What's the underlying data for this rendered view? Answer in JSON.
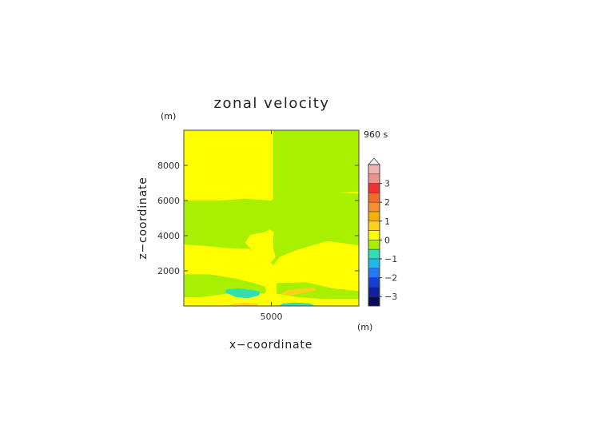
{
  "chart_data": {
    "type": "contour",
    "title": "zonal velocity",
    "time_label": "960 s",
    "xlabel": "x−coordinate",
    "ylabel": "z−coordinate",
    "x_unit": "(m)",
    "y_unit": "(m)",
    "xlim": [
      0,
      10000
    ],
    "ylim": [
      0,
      10000
    ],
    "xticks": [
      5000
    ],
    "yticks": [
      2000,
      4000,
      6000,
      8000
    ],
    "colorbar": {
      "ticks": [
        3,
        2,
        1,
        0,
        -1,
        -2,
        -3
      ],
      "tick_labels": [
        "3",
        "2",
        "1",
        "0",
        "−1",
        "−2",
        "−3"
      ],
      "levels": [
        {
          "lo": 3.5,
          "hi": 4.0,
          "color": "#f4b2b2"
        },
        {
          "lo": 3.0,
          "hi": 3.5,
          "color": "#f09090"
        },
        {
          "lo": 2.5,
          "hi": 3.0,
          "color": "#ee3030"
        },
        {
          "lo": 2.0,
          "hi": 2.5,
          "color": "#f46a2a"
        },
        {
          "lo": 1.5,
          "hi": 2.0,
          "color": "#f88f2a"
        },
        {
          "lo": 1.0,
          "hi": 1.5,
          "color": "#f7b000"
        },
        {
          "lo": 0.5,
          "hi": 1.0,
          "color": "#fbd21a"
        },
        {
          "lo": 0.0,
          "hi": 0.5,
          "color": "#ffff00"
        },
        {
          "lo": -0.5,
          "hi": 0.0,
          "color": "#a8f000"
        },
        {
          "lo": -1.0,
          "hi": -0.5,
          "color": "#30e0b0"
        },
        {
          "lo": -1.5,
          "hi": -1.0,
          "color": "#20b8e8"
        },
        {
          "lo": -2.0,
          "hi": -1.5,
          "color": "#2478f0"
        },
        {
          "lo": -2.5,
          "hi": -2.0,
          "color": "#1440d0"
        },
        {
          "lo": -3.0,
          "hi": -2.5,
          "color": "#10209c"
        },
        {
          "lo": -3.5,
          "hi": -3.0,
          "color": "#0a0a5a"
        }
      ],
      "extend": "max"
    },
    "regions": [
      {
        "name": "background",
        "value": 0.25,
        "polygon": [
          [
            0,
            0
          ],
          [
            10000,
            0
          ],
          [
            10000,
            10000
          ],
          [
            0,
            10000
          ]
        ]
      },
      {
        "name": "upper-right-green",
        "value": -0.25,
        "polygon": [
          [
            5100,
            10000
          ],
          [
            10000,
            10000
          ],
          [
            10000,
            6500
          ],
          [
            7500,
            6400
          ],
          [
            5600,
            6300
          ],
          [
            5100,
            6000
          ]
        ]
      },
      {
        "name": "middle-green-band",
        "value": -0.25,
        "polygon": [
          [
            0,
            6000
          ],
          [
            2000,
            6000
          ],
          [
            3500,
            6100
          ],
          [
            5000,
            6000
          ],
          [
            5200,
            6200
          ],
          [
            6000,
            6450
          ],
          [
            7500,
            6500
          ],
          [
            10000,
            6400
          ],
          [
            10000,
            3450
          ],
          [
            8200,
            3700
          ],
          [
            6500,
            3200
          ],
          [
            5500,
            2800
          ],
          [
            5100,
            2300
          ],
          [
            4800,
            2700
          ],
          [
            3700,
            3250
          ],
          [
            2400,
            3300
          ],
          [
            1400,
            3400
          ],
          [
            0,
            3500
          ]
        ]
      },
      {
        "name": "center-yellow-disc",
        "value": 0.25,
        "polygon": [
          [
            4600,
            4200
          ],
          [
            3800,
            4050
          ],
          [
            3500,
            3600
          ],
          [
            4000,
            3050
          ],
          [
            4500,
            2700
          ],
          [
            4700,
            2600
          ],
          [
            5000,
            2500
          ],
          [
            5250,
            2800
          ],
          [
            5150,
            3100
          ],
          [
            5100,
            3400
          ],
          [
            5100,
            3800
          ],
          [
            5150,
            4200
          ],
          [
            4900,
            4350
          ]
        ]
      },
      {
        "name": "lower-left-green",
        "value": -0.25,
        "polygon": [
          [
            0,
            1800
          ],
          [
            1500,
            1800
          ],
          [
            3000,
            1550
          ],
          [
            4000,
            1300
          ],
          [
            4650,
            1100
          ],
          [
            4700,
            850
          ],
          [
            4600,
            700
          ],
          [
            3500,
            800
          ],
          [
            2500,
            700
          ],
          [
            1000,
            500
          ],
          [
            0,
            500
          ]
        ]
      },
      {
        "name": "lower-right-green",
        "value": -0.25,
        "polygon": [
          [
            5300,
            1300
          ],
          [
            7000,
            1350
          ],
          [
            8500,
            1000
          ],
          [
            10000,
            850
          ],
          [
            10000,
            400
          ],
          [
            8000,
            400
          ],
          [
            6500,
            500
          ],
          [
            5300,
            700
          ]
        ]
      },
      {
        "name": "bottom-left-yellow-strip",
        "value": 0.25,
        "polygon": [
          [
            0,
            0
          ],
          [
            5000,
            0
          ],
          [
            5000,
            350
          ],
          [
            3500,
            400
          ],
          [
            1500,
            500
          ],
          [
            0,
            500
          ]
        ]
      },
      {
        "name": "left-cyan-blob",
        "value": -0.75,
        "polygon": [
          [
            2400,
            950
          ],
          [
            3100,
            1000
          ],
          [
            4000,
            900
          ],
          [
            4350,
            800
          ],
          [
            4300,
            600
          ],
          [
            3700,
            450
          ],
          [
            3000,
            500
          ],
          [
            2400,
            750
          ]
        ]
      },
      {
        "name": "right-orange-blob",
        "value": 0.75,
        "polygon": [
          [
            5550,
            700
          ],
          [
            5900,
            900
          ],
          [
            6800,
            1000
          ],
          [
            7500,
            1050
          ],
          [
            7550,
            900
          ],
          [
            6900,
            750
          ],
          [
            6100,
            600
          ]
        ]
      },
      {
        "name": "bottom-orange-blob",
        "value": 0.75,
        "polygon": [
          [
            2500,
            0
          ],
          [
            4300,
            0
          ],
          [
            4200,
            150
          ],
          [
            3400,
            180
          ],
          [
            2800,
            120
          ]
        ]
      },
      {
        "name": "bottom-cyan-blob",
        "value": -0.75,
        "polygon": [
          [
            5400,
            0
          ],
          [
            7500,
            0
          ],
          [
            7200,
            150
          ],
          [
            6300,
            200
          ],
          [
            5700,
            150
          ]
        ]
      }
    ]
  }
}
